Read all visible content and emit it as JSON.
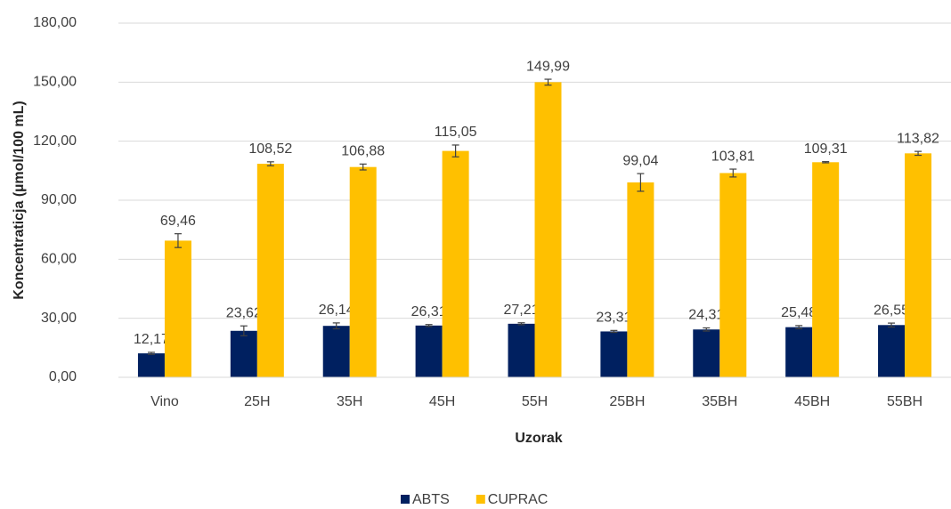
{
  "chart_data": {
    "type": "bar",
    "xlabel": "Uzorak",
    "ylabel": "Koncentraticja  (µmol/100 mL)",
    "categories": [
      "Vino",
      "25H",
      "35H",
      "45H",
      "55H",
      "25BH",
      "35BH",
      "45BH",
      "55BH"
    ],
    "series": [
      {
        "name": "ABTS",
        "color": "#002060",
        "values": [
          12.17,
          23.62,
          26.14,
          26.31,
          27.21,
          23.31,
          24.31,
          25.48,
          26.55
        ],
        "value_labels": [
          "12,17",
          "23,62",
          "26,14",
          "26,31",
          "27,21",
          "23,31",
          "24,31",
          "25,48",
          "26,55"
        ],
        "errors": [
          0.5,
          2.5,
          1.5,
          0.5,
          0.5,
          0.5,
          0.8,
          0.8,
          1.0
        ]
      },
      {
        "name": "CUPRAC",
        "color": "#ffc000",
        "values": [
          69.46,
          108.52,
          106.88,
          115.05,
          149.99,
          99.04,
          103.81,
          109.31,
          113.82
        ],
        "value_labels": [
          "69,46",
          "108,52",
          "106,88",
          "115,05",
          "149,99",
          "99,04",
          "103,81",
          "109,31",
          "113,82"
        ],
        "errors": [
          3.5,
          1.0,
          1.5,
          3.0,
          1.5,
          4.5,
          2.0,
          0.3,
          1.0
        ]
      }
    ],
    "ylim": [
      0,
      180
    ],
    "yticks": [
      {
        "value": 0,
        "label": "0,00"
      },
      {
        "value": 30,
        "label": "30,00"
      },
      {
        "value": 60,
        "label": "60,00"
      },
      {
        "value": 90,
        "label": "90,00"
      },
      {
        "value": 120,
        "label": "120,00"
      },
      {
        "value": 150,
        "label": "150,00"
      },
      {
        "value": 180,
        "label": "180,00"
      }
    ],
    "grid": true,
    "legend": "bottom"
  }
}
